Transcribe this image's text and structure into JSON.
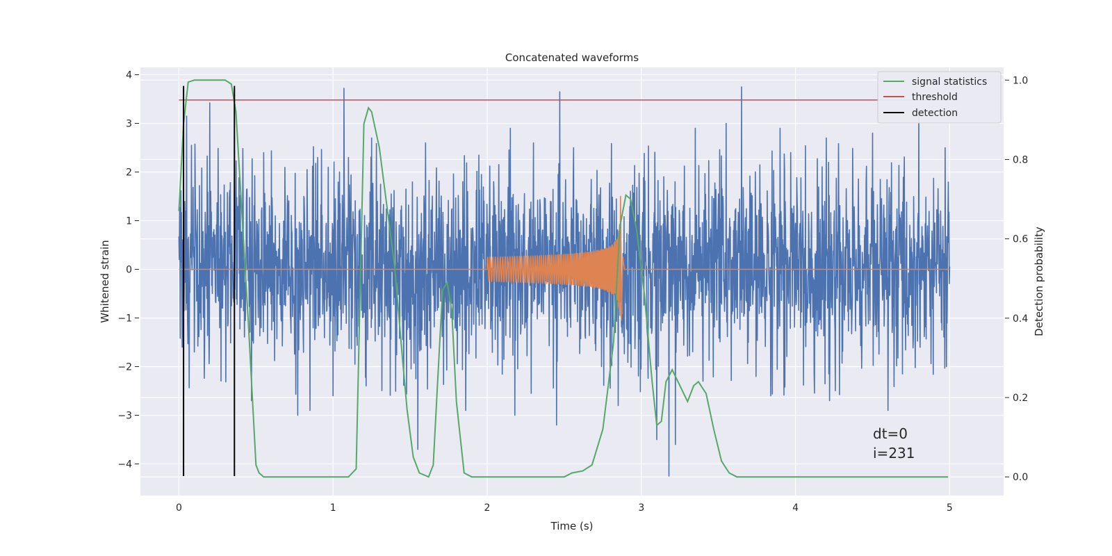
{
  "chart_data": {
    "type": "line",
    "title": "Concatenated waveforms",
    "xlabel": "Time (s)",
    "ylabel": "Whitened strain",
    "ylabel_right": "Detection probability",
    "xlim": [
      -0.25,
      5.35
    ],
    "ylim": [
      -4.65,
      4.15
    ],
    "ylim_right": [
      -0.047,
      1.032
    ],
    "xticks": [
      0,
      1,
      2,
      3,
      4,
      5
    ],
    "yticks": [
      -4,
      -3,
      -2,
      -1,
      0,
      1,
      2,
      3,
      4
    ],
    "yticks_right": [
      0.0,
      0.2,
      0.4,
      0.6,
      0.8,
      1.0
    ],
    "ytick_labels_right": [
      "0.0",
      "0.2",
      "0.4",
      "0.6",
      "0.8",
      "1.0"
    ],
    "grid": true,
    "colors": {
      "background": "#eaeaf2",
      "grid": "#ffffff",
      "noise": "#4c72b0",
      "waveform": "#dd8452",
      "statistics": "#55a868",
      "threshold": "#c44e52",
      "detection": "#000000"
    },
    "noise": {
      "name": "whitened strain",
      "x_start": 0,
      "x_end": 5,
      "core_sigma": 0.95,
      "peaks": [
        [
          0.05,
          3.15
        ],
        [
          0.2,
          3.42
        ],
        [
          0.36,
          2.45
        ],
        [
          0.55,
          2.4
        ],
        [
          0.9,
          2.3
        ],
        [
          1.07,
          3.72
        ],
        [
          1.1,
          2.3
        ],
        [
          1.25,
          2.7
        ],
        [
          1.6,
          2.6
        ],
        [
          2.15,
          2.9
        ],
        [
          2.3,
          2.6
        ],
        [
          2.47,
          3.65
        ],
        [
          2.56,
          2.5
        ],
        [
          3.1,
          2.6
        ],
        [
          3.35,
          2.9
        ],
        [
          3.55,
          3.0
        ],
        [
          3.65,
          3.75
        ],
        [
          3.9,
          2.9
        ],
        [
          4.2,
          2.7
        ],
        [
          4.5,
          2.8
        ],
        [
          4.8,
          3.3
        ],
        [
          4.97,
          2.5
        ]
      ],
      "troughs": [
        [
          0.02,
          -1.6
        ],
        [
          0.1,
          -1.7
        ],
        [
          0.47,
          -2.7
        ],
        [
          0.77,
          -3.0
        ],
        [
          0.85,
          -2.9
        ],
        [
          1.0,
          -2.6
        ],
        [
          1.55,
          -3.25
        ],
        [
          1.55,
          -3.7
        ],
        [
          1.86,
          -2.9
        ],
        [
          2.18,
          -3.0
        ],
        [
          2.45,
          -3.2
        ],
        [
          2.85,
          -2.8
        ],
        [
          3.1,
          -3.5
        ],
        [
          3.18,
          -4.25
        ],
        [
          3.22,
          -3.6
        ],
        [
          3.4,
          -2.3
        ],
        [
          3.84,
          -2.6
        ],
        [
          4.22,
          -2.7
        ],
        [
          4.6,
          -2.9
        ],
        [
          4.98,
          -2.0
        ]
      ]
    },
    "waveform": {
      "name": "injected waveform",
      "start": 2.0,
      "merger": 2.86,
      "end": 2.88,
      "amp_start": 0.25,
      "amp_peak": 1.5,
      "amp_trough": -1.05,
      "baseline": 0.0,
      "x_end": 5.0
    },
    "statistics": {
      "name": "signal statistics",
      "x": [
        0.0,
        0.03,
        0.06,
        0.1,
        0.3,
        0.34,
        0.37,
        0.4,
        0.45,
        0.5,
        0.52,
        0.55,
        1.1,
        1.15,
        1.17,
        1.2,
        1.23,
        1.25,
        1.3,
        1.4,
        1.45,
        1.48,
        1.52,
        1.56,
        1.62,
        1.65,
        1.68,
        1.71,
        1.74,
        1.77,
        1.8,
        1.85,
        1.9,
        2.5,
        2.55,
        2.62,
        2.68,
        2.75,
        2.82,
        2.86,
        2.9,
        2.93,
        2.97,
        3.02,
        3.07,
        3.1,
        3.13,
        3.16,
        3.2,
        3.25,
        3.3,
        3.34,
        3.37,
        3.42,
        3.47,
        3.52,
        3.57,
        3.62,
        3.8,
        4.99
      ],
      "y": [
        0.67,
        0.89,
        0.995,
        1.0,
        1.0,
        0.99,
        0.92,
        0.72,
        0.39,
        0.03,
        0.01,
        0.0,
        0.0,
        0.02,
        0.37,
        0.89,
        0.93,
        0.92,
        0.83,
        0.53,
        0.3,
        0.17,
        0.05,
        0.01,
        0.0,
        0.03,
        0.25,
        0.47,
        0.49,
        0.42,
        0.19,
        0.01,
        0.0,
        0.0,
        0.01,
        0.015,
        0.03,
        0.12,
        0.34,
        0.63,
        0.71,
        0.7,
        0.62,
        0.46,
        0.24,
        0.13,
        0.14,
        0.24,
        0.27,
        0.23,
        0.19,
        0.23,
        0.24,
        0.21,
        0.12,
        0.04,
        0.01,
        0.0,
        0.0,
        0.0
      ],
      "axis": "right"
    },
    "threshold": {
      "name": "threshold",
      "value": 0.95,
      "x": [
        0.0,
        5.0
      ],
      "axis": "right"
    },
    "detections": {
      "name": "detection",
      "x": [
        0.03,
        0.36
      ],
      "ymin": -4.25,
      "ymax": 3.77
    },
    "legend": {
      "position": "top-right",
      "entries": [
        "signal statistics",
        "threshold",
        "detection"
      ]
    },
    "annotations": [
      "dt=0",
      "i=231"
    ]
  }
}
